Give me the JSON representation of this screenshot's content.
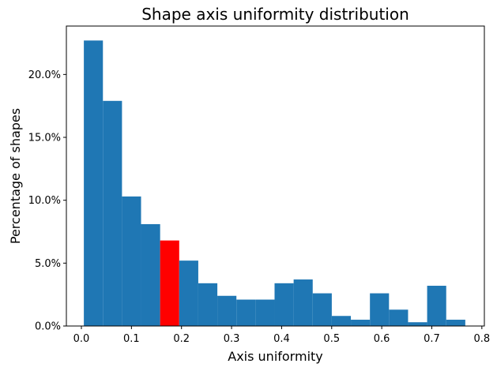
{
  "chart_data": {
    "type": "bar",
    "title": "Shape axis uniformity distribution",
    "xlabel": "Axis uniformity",
    "ylabel": "Percentage of shapes",
    "bin_edges": [
      0.0049,
      0.043,
      0.0811,
      0.1192,
      0.1573,
      0.1954,
      0.2335,
      0.2716,
      0.3097,
      0.3478,
      0.3859,
      0.424,
      0.4621,
      0.5002,
      0.5383,
      0.5764,
      0.6145,
      0.6526,
      0.6907,
      0.7288,
      0.7669
    ],
    "values": [
      22.7,
      17.9,
      10.3,
      8.1,
      6.8,
      5.2,
      3.4,
      2.4,
      2.1,
      2.1,
      3.4,
      3.7,
      2.6,
      0.8,
      0.5,
      2.6,
      1.3,
      0.3,
      3.2,
      0.5
    ],
    "highlight_index": 4,
    "colors": {
      "bar": "#1f77b4",
      "highlight": "#ff0000"
    },
    "xlim": [
      -0.03,
      0.805
    ],
    "ylim": [
      0,
      23.85
    ],
    "x_ticks": [
      0.0,
      0.1,
      0.2,
      0.3,
      0.4,
      0.5,
      0.6,
      0.7,
      0.8
    ],
    "x_tick_labels": [
      "0.0",
      "0.1",
      "0.2",
      "0.3",
      "0.4",
      "0.5",
      "0.6",
      "0.7",
      "0.8"
    ],
    "y_ticks": [
      0,
      5,
      10,
      15,
      20
    ],
    "y_tick_labels": [
      "0.0%",
      "5.0%",
      "10.0%",
      "15.0%",
      "20.0%"
    ],
    "grid": false,
    "legend": "none"
  }
}
